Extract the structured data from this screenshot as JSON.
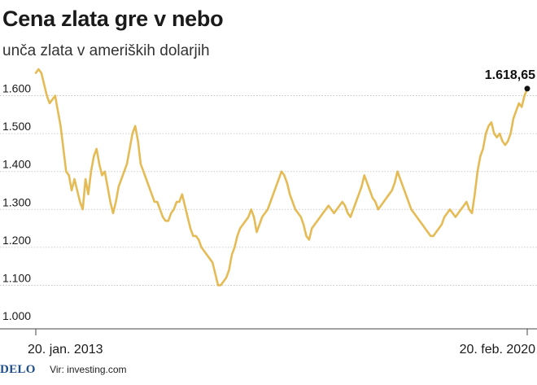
{
  "title": "Cena zlata gre v nebo",
  "subtitle": "unča zlata v ameriških dolarjih",
  "footer": {
    "logo": "DELO",
    "source": "Vir: investing.com"
  },
  "colors": {
    "line": "#e5bb55",
    "text": "#1a1a1a",
    "grid": "#bdbdbd"
  },
  "chart_data": {
    "type": "line",
    "title": "Cena zlata gre v nebo",
    "subtitle": "unča zlata v ameriških dolarjih",
    "ylim": [
      1000,
      1700
    ],
    "yticks": [
      1000,
      1100,
      1200,
      1300,
      1400,
      1500,
      1600
    ],
    "ytick_labels": [
      "1.000",
      "1.100",
      "1.200",
      "1.300",
      "1.400",
      "1.500",
      "1.600"
    ],
    "x_range": [
      "2013-01-20",
      "2020-02-20"
    ],
    "xtick_labels": [
      "20. jan. 2013",
      "20. feb. 2020"
    ],
    "grid": "horizontal",
    "end_label": "1.618,65",
    "series": [
      {
        "values": [
          1660,
          1670,
          1660,
          1630,
          1600,
          1580,
          1590,
          1600,
          1560,
          1520,
          1460,
          1400,
          1390,
          1350,
          1380,
          1350,
          1320,
          1300,
          1380,
          1340,
          1400,
          1440,
          1460,
          1420,
          1390,
          1400,
          1360,
          1320,
          1290,
          1320,
          1360,
          1380,
          1400,
          1420,
          1460,
          1500,
          1520,
          1480,
          1420,
          1400,
          1380,
          1360,
          1340,
          1320,
          1320,
          1300,
          1280,
          1270,
          1270,
          1290,
          1300,
          1320,
          1320,
          1340,
          1310,
          1280,
          1250,
          1230,
          1230,
          1220,
          1200,
          1190,
          1180,
          1170,
          1160,
          1130,
          1100,
          1100,
          1110,
          1120,
          1140,
          1180,
          1200,
          1230,
          1250,
          1260,
          1270,
          1280,
          1300,
          1280,
          1240,
          1260,
          1280,
          1290,
          1300,
          1320,
          1340,
          1360,
          1380,
          1400,
          1390,
          1370,
          1340,
          1320,
          1300,
          1290,
          1280,
          1260,
          1230,
          1220,
          1250,
          1260,
          1270,
          1280,
          1290,
          1300,
          1310,
          1300,
          1290,
          1300,
          1310,
          1320,
          1310,
          1290,
          1280,
          1300,
          1320,
          1340,
          1360,
          1390,
          1370,
          1350,
          1330,
          1320,
          1300,
          1310,
          1320,
          1330,
          1340,
          1350,
          1370,
          1400,
          1380,
          1360,
          1340,
          1320,
          1300,
          1290,
          1280,
          1270,
          1260,
          1250,
          1240,
          1230,
          1230,
          1240,
          1250,
          1260,
          1280,
          1290,
          1300,
          1290,
          1280,
          1290,
          1300,
          1310,
          1320,
          1300,
          1290,
          1340,
          1400,
          1440,
          1460,
          1500,
          1520,
          1530,
          1500,
          1490,
          1500,
          1480,
          1470,
          1480,
          1500,
          1540,
          1560,
          1580,
          1570,
          1600,
          1618.65
        ]
      }
    ]
  }
}
